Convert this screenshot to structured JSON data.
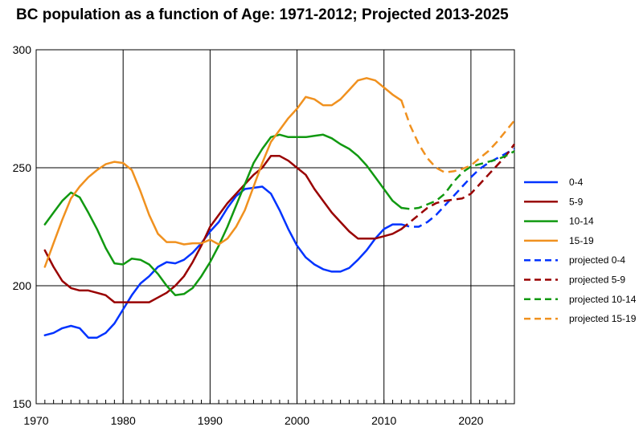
{
  "chart_data": {
    "type": "line",
    "title": "BC population as a function of Age: 1971-2012; Projected 2013-2025",
    "xlabel": "",
    "ylabel": "",
    "xlim": [
      1970,
      2025
    ],
    "ylim": [
      150,
      300
    ],
    "x_ticks": [
      1970,
      1980,
      1990,
      2000,
      2010,
      2020
    ],
    "y_ticks": [
      150,
      200,
      250,
      300
    ],
    "grid": true,
    "legend_position": "right",
    "series": [
      {
        "name": "0-4",
        "color": "#0033ff",
        "style": "solid",
        "points": [
          [
            1971,
            179
          ],
          [
            1972,
            180
          ],
          [
            1973,
            182
          ],
          [
            1974,
            183
          ],
          [
            1975,
            182
          ],
          [
            1976,
            178
          ],
          [
            1977,
            178
          ],
          [
            1978,
            180
          ],
          [
            1979,
            184
          ],
          [
            1980,
            190
          ],
          [
            1981,
            196
          ],
          [
            1982,
            201
          ],
          [
            1983,
            204
          ],
          [
            1984,
            208
          ],
          [
            1985,
            210
          ],
          [
            1986,
            209.5
          ],
          [
            1987,
            211
          ],
          [
            1988,
            214
          ],
          [
            1989,
            218
          ],
          [
            1990,
            223
          ],
          [
            1991,
            227
          ],
          [
            1992,
            233
          ],
          [
            1993,
            238
          ],
          [
            1994,
            241
          ],
          [
            1995,
            241.5
          ],
          [
            1996,
            242
          ],
          [
            1997,
            239
          ],
          [
            1998,
            232
          ],
          [
            1999,
            224
          ],
          [
            2000,
            217
          ],
          [
            2001,
            212
          ],
          [
            2002,
            209
          ],
          [
            2003,
            207
          ],
          [
            2004,
            206
          ],
          [
            2005,
            206
          ],
          [
            2006,
            207.5
          ],
          [
            2007,
            211
          ],
          [
            2008,
            215
          ],
          [
            2009,
            220
          ],
          [
            2010,
            224
          ],
          [
            2011,
            226
          ],
          [
            2012,
            226
          ]
        ]
      },
      {
        "name": "5-9",
        "color": "#990000",
        "style": "solid",
        "points": [
          [
            1971,
            215
          ],
          [
            1972,
            208
          ],
          [
            1973,
            202
          ],
          [
            1974,
            199
          ],
          [
            1975,
            198
          ],
          [
            1976,
            198
          ],
          [
            1977,
            197
          ],
          [
            1978,
            196
          ],
          [
            1979,
            193
          ],
          [
            1980,
            193
          ],
          [
            1981,
            193
          ],
          [
            1982,
            193
          ],
          [
            1983,
            193
          ],
          [
            1984,
            195
          ],
          [
            1985,
            197
          ],
          [
            1986,
            200
          ],
          [
            1987,
            204
          ],
          [
            1988,
            210
          ],
          [
            1989,
            217
          ],
          [
            1990,
            225
          ],
          [
            1991,
            230
          ],
          [
            1992,
            235
          ],
          [
            1993,
            239
          ],
          [
            1994,
            243
          ],
          [
            1995,
            247
          ],
          [
            1996,
            250
          ],
          [
            1997,
            255
          ],
          [
            1998,
            255
          ],
          [
            1999,
            253
          ],
          [
            2000,
            250
          ],
          [
            2001,
            247
          ],
          [
            2002,
            241
          ],
          [
            2003,
            236
          ],
          [
            2004,
            231
          ],
          [
            2005,
            227
          ],
          [
            2006,
            223
          ],
          [
            2007,
            220
          ],
          [
            2008,
            220
          ],
          [
            2009,
            220
          ],
          [
            2010,
            221
          ],
          [
            2011,
            222
          ],
          [
            2012,
            224
          ]
        ]
      },
      {
        "name": "10-14",
        "color": "#119911",
        "style": "solid",
        "points": [
          [
            1971,
            226
          ],
          [
            1972,
            231
          ],
          [
            1973,
            236
          ],
          [
            1974,
            239.5
          ],
          [
            1975,
            237.5
          ],
          [
            1976,
            231
          ],
          [
            1977,
            224
          ],
          [
            1978,
            216
          ],
          [
            1979,
            209.5
          ],
          [
            1980,
            209
          ],
          [
            1981,
            211.5
          ],
          [
            1982,
            211
          ],
          [
            1983,
            209
          ],
          [
            1984,
            205
          ],
          [
            1985,
            200
          ],
          [
            1986,
            196
          ],
          [
            1987,
            196.5
          ],
          [
            1988,
            199
          ],
          [
            1989,
            204
          ],
          [
            1990,
            210
          ],
          [
            1991,
            217
          ],
          [
            1992,
            225
          ],
          [
            1993,
            234
          ],
          [
            1994,
            243
          ],
          [
            1995,
            252
          ],
          [
            1996,
            258
          ],
          [
            1997,
            263
          ],
          [
            1998,
            264
          ],
          [
            1999,
            263
          ],
          [
            2000,
            263
          ],
          [
            2001,
            263
          ],
          [
            2002,
            263.5
          ],
          [
            2003,
            264
          ],
          [
            2004,
            262.5
          ],
          [
            2005,
            260
          ],
          [
            2006,
            258
          ],
          [
            2007,
            255
          ],
          [
            2008,
            251
          ],
          [
            2009,
            246
          ],
          [
            2010,
            241
          ],
          [
            2011,
            236
          ],
          [
            2012,
            233
          ]
        ]
      },
      {
        "name": "15-19",
        "color": "#f0911f",
        "style": "solid",
        "points": [
          [
            1971,
            208
          ],
          [
            1972,
            218
          ],
          [
            1973,
            228
          ],
          [
            1974,
            237
          ],
          [
            1975,
            242
          ],
          [
            1976,
            246
          ],
          [
            1977,
            249
          ],
          [
            1978,
            251.5
          ],
          [
            1979,
            252.5
          ],
          [
            1980,
            252
          ],
          [
            1981,
            249
          ],
          [
            1982,
            240
          ],
          [
            1983,
            230
          ],
          [
            1984,
            222
          ],
          [
            1985,
            218.5
          ],
          [
            1986,
            218.5
          ],
          [
            1987,
            217.5
          ],
          [
            1988,
            218
          ],
          [
            1989,
            218
          ],
          [
            1990,
            219.5
          ],
          [
            1991,
            217.5
          ],
          [
            1992,
            220
          ],
          [
            1993,
            225
          ],
          [
            1994,
            232
          ],
          [
            1995,
            242
          ],
          [
            1996,
            252
          ],
          [
            1997,
            261
          ],
          [
            1998,
            266
          ],
          [
            1999,
            271
          ],
          [
            2000,
            275
          ],
          [
            2001,
            280
          ],
          [
            2002,
            279
          ],
          [
            2003,
            276.5
          ],
          [
            2004,
            276.5
          ],
          [
            2005,
            279
          ],
          [
            2006,
            283
          ],
          [
            2007,
            287
          ],
          [
            2008,
            288
          ],
          [
            2009,
            287
          ],
          [
            2010,
            284
          ],
          [
            2011,
            281
          ],
          [
            2012,
            278.5
          ]
        ]
      },
      {
        "name": "projected 0-4",
        "color": "#0033ff",
        "style": "dashed",
        "points": [
          [
            2012,
            226
          ],
          [
            2013,
            225
          ],
          [
            2014,
            225
          ],
          [
            2015,
            227
          ],
          [
            2016,
            230
          ],
          [
            2017,
            234
          ],
          [
            2018,
            238
          ],
          [
            2019,
            242
          ],
          [
            2020,
            246
          ],
          [
            2021,
            249.5
          ],
          [
            2022,
            252
          ],
          [
            2023,
            254
          ],
          [
            2024,
            256
          ],
          [
            2025,
            258
          ]
        ]
      },
      {
        "name": "projected 5-9",
        "color": "#990000",
        "style": "dashed",
        "points": [
          [
            2012,
            224
          ],
          [
            2013,
            227
          ],
          [
            2014,
            230
          ],
          [
            2015,
            233
          ],
          [
            2016,
            235
          ],
          [
            2017,
            236
          ],
          [
            2018,
            236.5
          ],
          [
            2019,
            237
          ],
          [
            2020,
            239
          ],
          [
            2021,
            243
          ],
          [
            2022,
            247
          ],
          [
            2023,
            251
          ],
          [
            2024,
            255
          ],
          [
            2025,
            260
          ]
        ]
      },
      {
        "name": "projected 10-14",
        "color": "#119911",
        "style": "dashed",
        "points": [
          [
            2012,
            233
          ],
          [
            2013,
            232.5
          ],
          [
            2014,
            233
          ],
          [
            2015,
            234.5
          ],
          [
            2016,
            236
          ],
          [
            2017,
            239
          ],
          [
            2018,
            244
          ],
          [
            2019,
            248
          ],
          [
            2020,
            250.5
          ],
          [
            2021,
            251.5
          ],
          [
            2022,
            252.5
          ],
          [
            2023,
            253.5
          ],
          [
            2024,
            255
          ],
          [
            2025,
            257
          ]
        ]
      },
      {
        "name": "projected 15-19",
        "color": "#f0911f",
        "style": "dashed",
        "points": [
          [
            2012,
            278.5
          ],
          [
            2013,
            268
          ],
          [
            2014,
            260
          ],
          [
            2015,
            254
          ],
          [
            2016,
            250
          ],
          [
            2017,
            248
          ],
          [
            2018,
            248.5
          ],
          [
            2019,
            249.5
          ],
          [
            2020,
            251
          ],
          [
            2021,
            254
          ],
          [
            2022,
            257
          ],
          [
            2023,
            261
          ],
          [
            2024,
            265.5
          ],
          [
            2025,
            270
          ]
        ]
      }
    ]
  }
}
